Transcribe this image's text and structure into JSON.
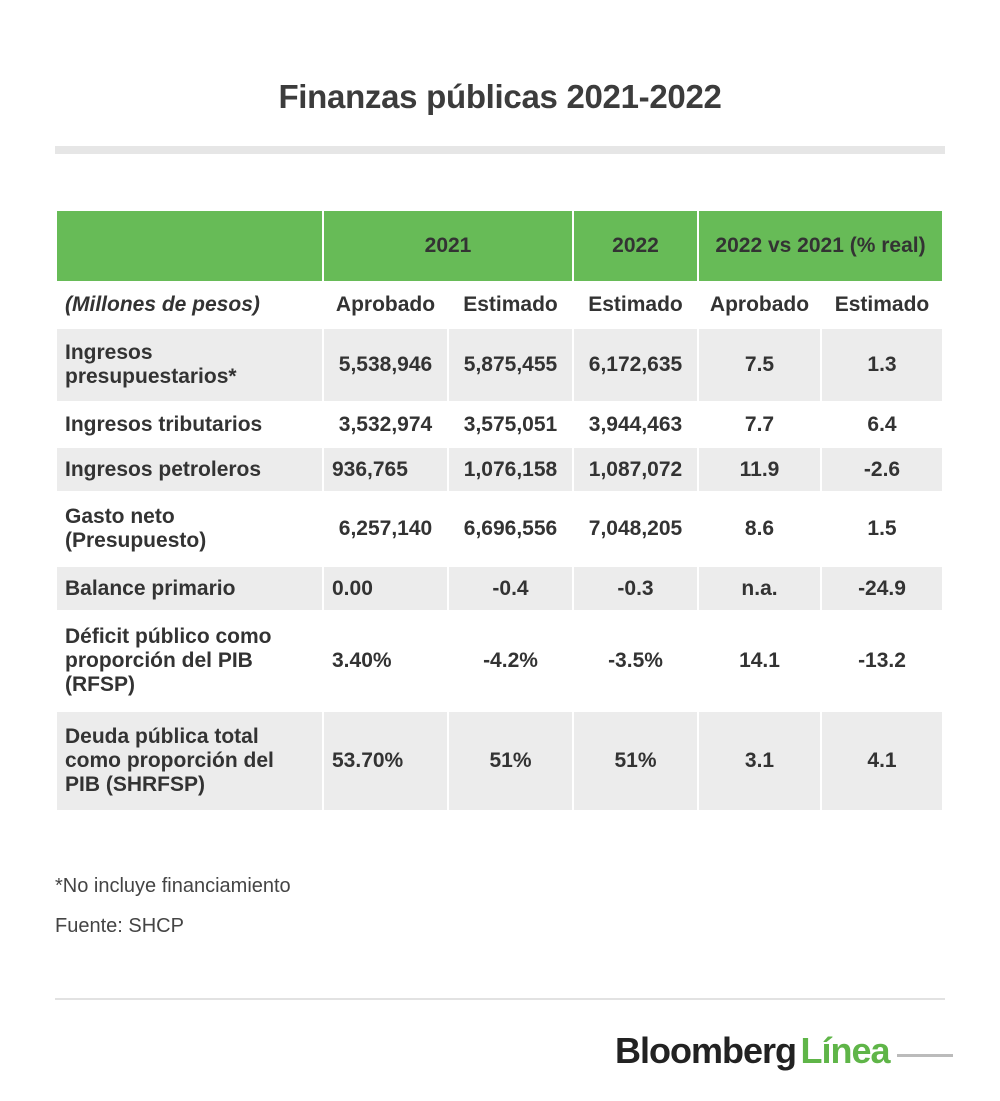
{
  "title": "Finanzas públicas 2021-2022",
  "table": {
    "group_headers": [
      "",
      "2021",
      "2022",
      "2022 vs 2021 (% real)"
    ],
    "sub_headers": [
      "(Millones de pesos)",
      "Aprobado",
      "Estimado",
      "Estimado",
      "Aprobado",
      "Estimado"
    ],
    "rows": [
      {
        "label": "Ingresos presupuestarios*",
        "values": [
          "5,538,946",
          "5,875,455",
          "6,172,635",
          "7.5",
          "1.3"
        ]
      },
      {
        "label": "Ingresos tributarios",
        "values": [
          "3,532,974",
          "3,575,051",
          "3,944,463",
          "7.7",
          "6.4"
        ]
      },
      {
        "label": "Ingresos petroleros",
        "values": [
          "936,765",
          "1,076,158",
          "1,087,072",
          "11.9",
          "-2.6"
        ]
      },
      {
        "label": "Gasto neto (Presupuesto)",
        "values": [
          "6,257,140",
          "6,696,556",
          "7,048,205",
          "8.6",
          "1.5"
        ]
      },
      {
        "label": "Balance primario",
        "values": [
          "0.00",
          "-0.4",
          "-0.3",
          "n.a.",
          "-24.9"
        ]
      },
      {
        "label": "Déficit público como proporción del PIB (RFSP)",
        "values": [
          "3.40%",
          "-4.2%",
          "-3.5%",
          "14.1",
          "-13.2"
        ]
      },
      {
        "label": "Deuda pública total como proporción del PIB (SHRFSP)",
        "values": [
          "53.70%",
          "51%",
          "51%",
          "3.1",
          "4.1"
        ]
      }
    ]
  },
  "chart_data": {
    "type": "table",
    "title": "Finanzas públicas 2021-2022",
    "columns": [
      "(Millones de pesos)",
      "2021 Aprobado",
      "2021 Estimado",
      "2022 Estimado",
      "2022 vs 2021 (% real) Aprobado",
      "2022 vs 2021 (% real) Estimado"
    ],
    "rows": [
      [
        "Ingresos presupuestarios*",
        "5,538,946",
        "5,875,455",
        "6,172,635",
        "7.5",
        "1.3"
      ],
      [
        "Ingresos tributarios",
        "3,532,974",
        "3,575,051",
        "3,944,463",
        "7.7",
        "6.4"
      ],
      [
        "Ingresos petroleros",
        "936,765",
        "1,076,158",
        "1,087,072",
        "11.9",
        "-2.6"
      ],
      [
        "Gasto neto (Presupuesto)",
        "6,257,140",
        "6,696,556",
        "7,048,205",
        "8.6",
        "1.5"
      ],
      [
        "Balance primario",
        "0.00",
        "-0.4",
        "-0.3",
        "n.a.",
        "-24.9"
      ],
      [
        "Déficit público como proporción del PIB (RFSP)",
        "3.40%",
        "-4.2%",
        "-3.5%",
        "14.1",
        "-13.2"
      ],
      [
        "Deuda pública total como proporción del PIB (SHRFSP)",
        "53.70%",
        "51%",
        "51%",
        "3.1",
        "4.1"
      ]
    ]
  },
  "notes": {
    "footnote": "*No incluye financiamiento",
    "source": "Fuente: SHCP"
  },
  "logo": {
    "part1": "Bloomberg",
    "part2": "Línea",
    "accent_color": "#5fb548"
  },
  "colors": {
    "header_green": "#67bb57",
    "row_stripe": "#ececec"
  }
}
